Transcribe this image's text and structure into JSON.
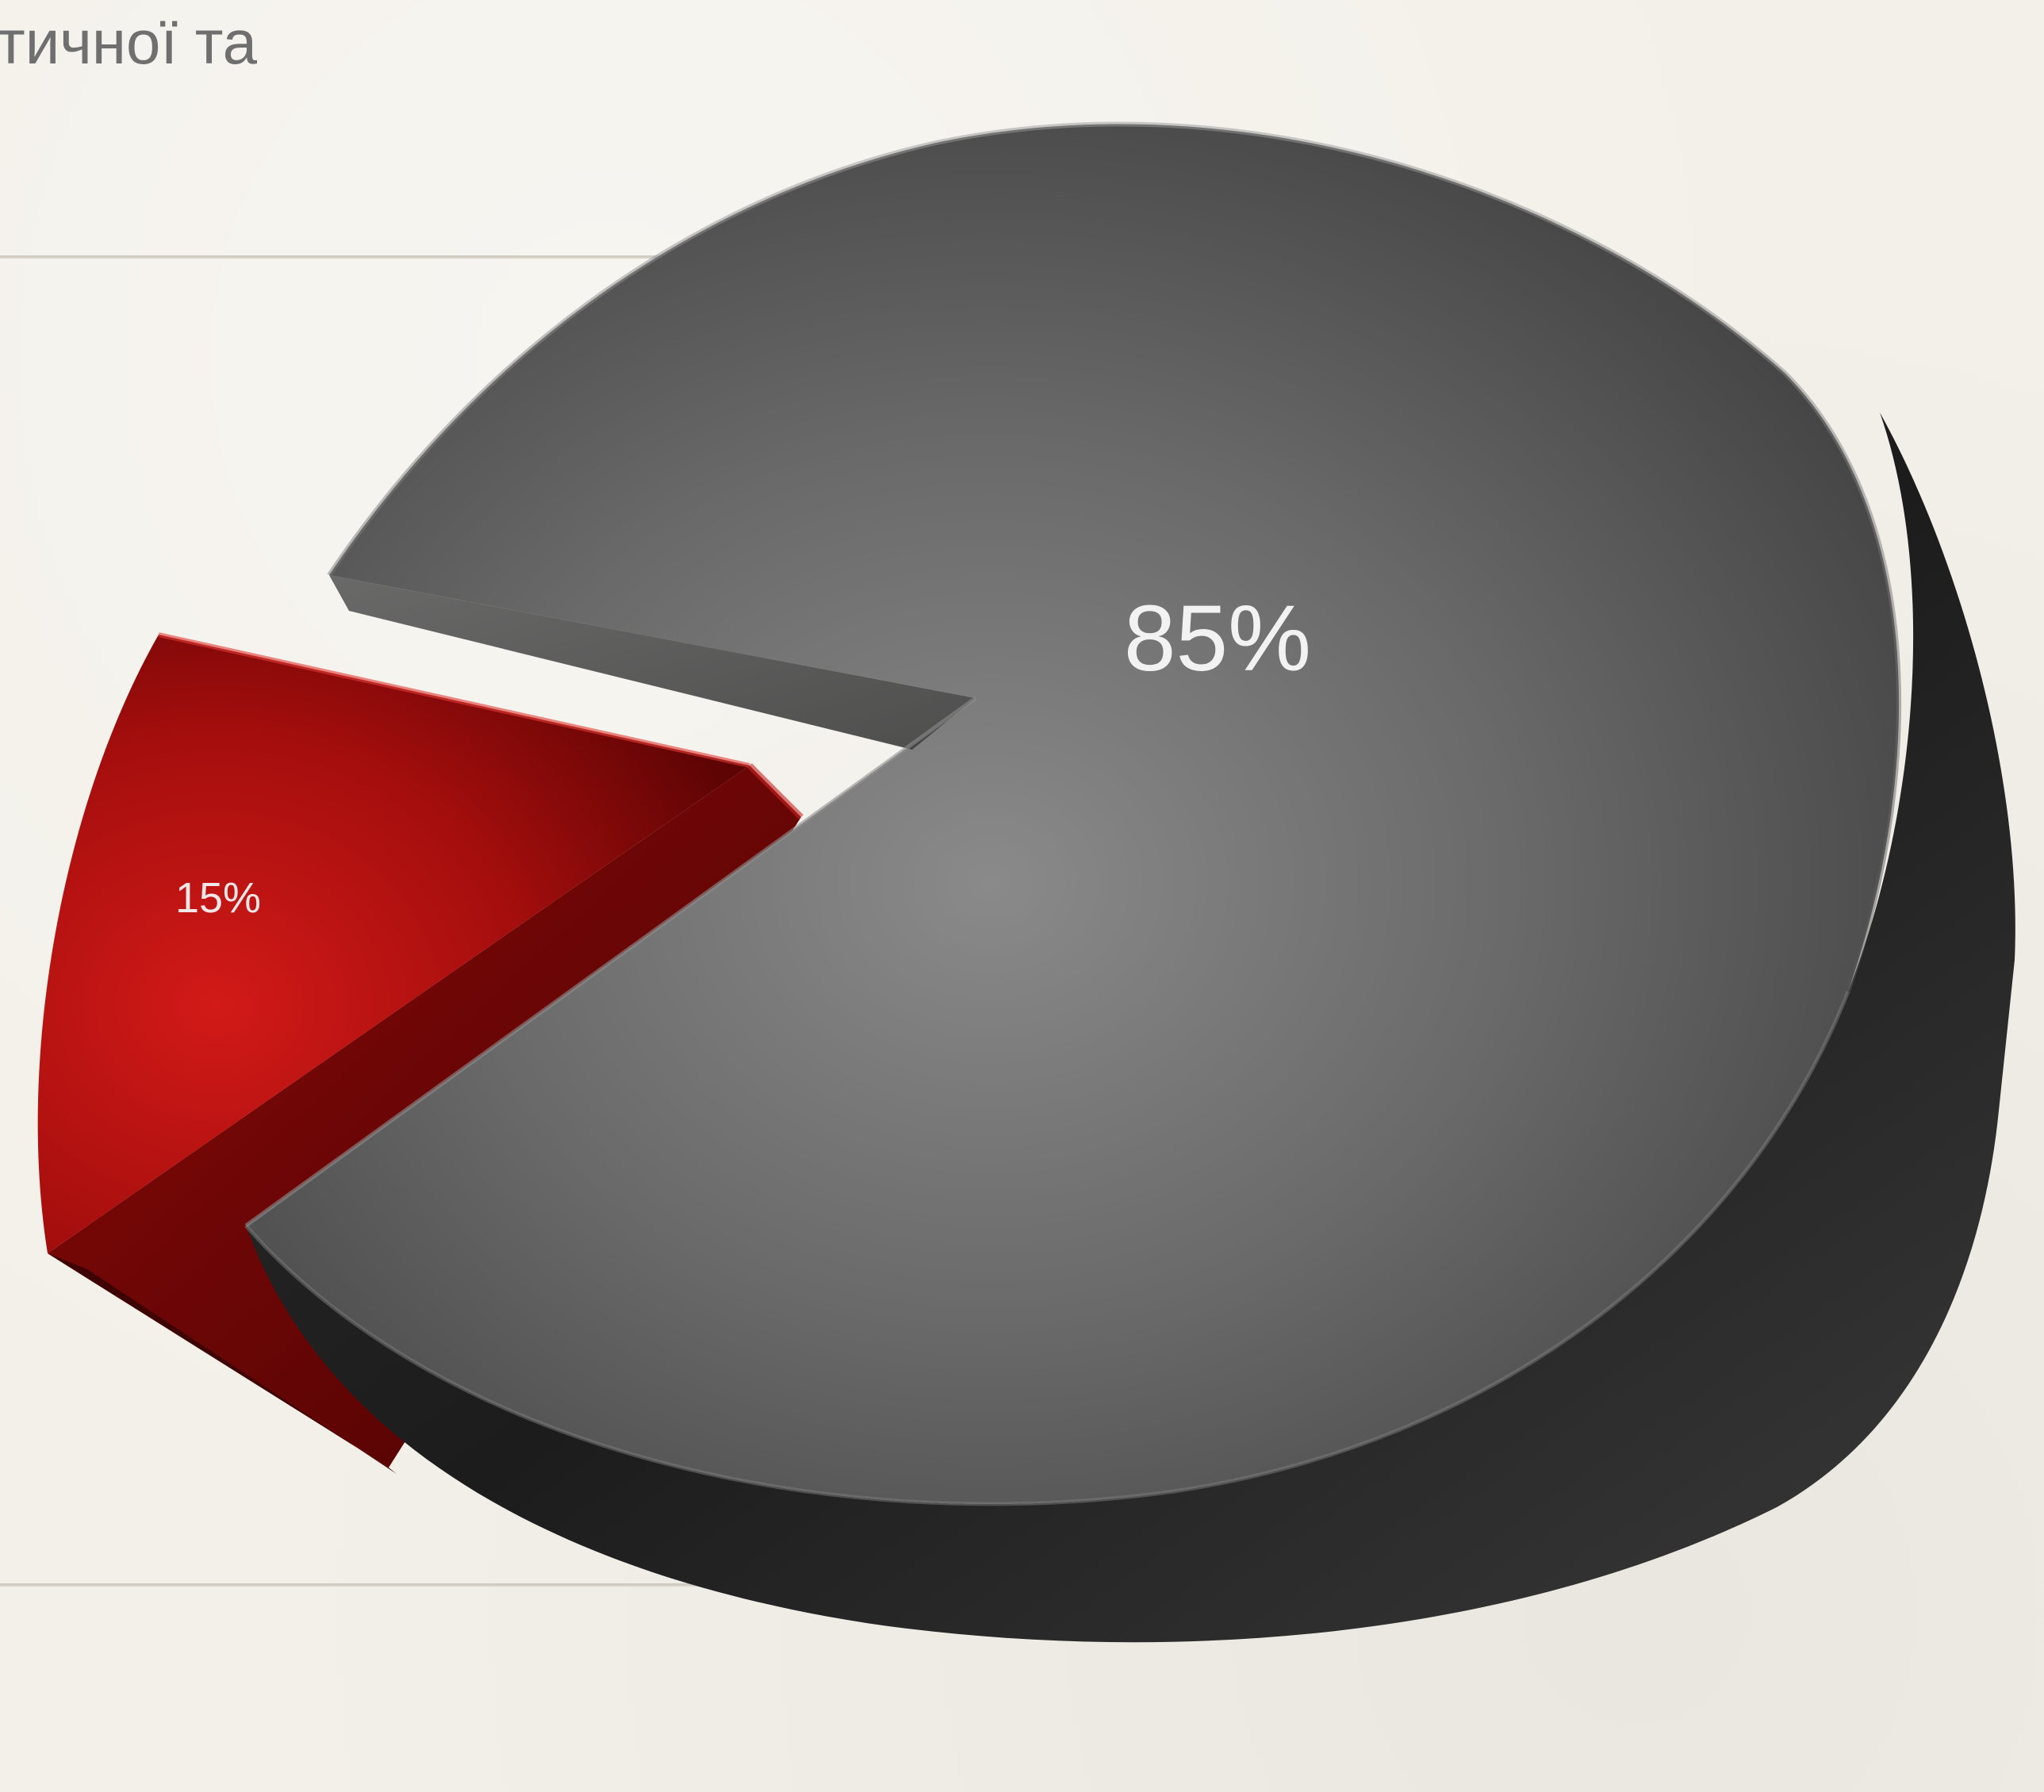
{
  "header": {
    "title_fragment": "тичної та"
  },
  "chart_data": {
    "type": "pie",
    "title": "тичної та",
    "slices": [
      {
        "label": "85%",
        "value": 85,
        "color": "#6a6a6a"
      },
      {
        "label": "15%",
        "value": 15,
        "color": "#b0100f"
      }
    ],
    "legend": "none",
    "grid": false
  }
}
